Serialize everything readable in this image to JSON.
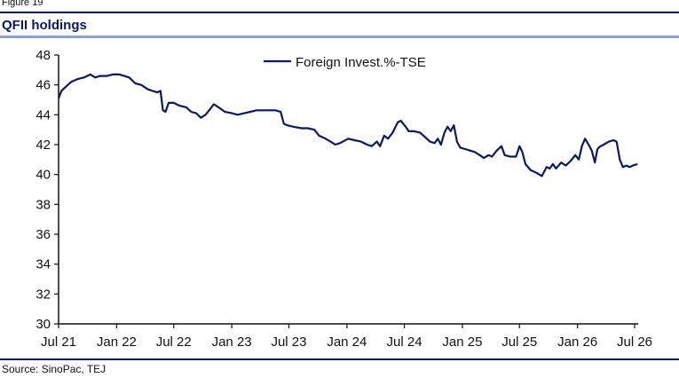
{
  "figure_label": "Figure 19",
  "title": "QFII holdings",
  "source": "Source: SinoPac, TEJ",
  "chart_data": {
    "type": "line",
    "title": "QFII holdings",
    "xlabel": "",
    "ylabel": "",
    "ylim": [
      30,
      48
    ],
    "yticks": [
      "30",
      "32",
      "34",
      "36",
      "38",
      "40",
      "42",
      "44",
      "46",
      "48"
    ],
    "x_range": [
      "2021-07",
      "2026-07"
    ],
    "xticks": [
      {
        "label": "Jul 21",
        "date": "2021-07"
      },
      {
        "label": "Jan 22",
        "date": "2022-01"
      },
      {
        "label": "Jul 22",
        "date": "2022-07"
      },
      {
        "label": "Jan 23",
        "date": "2023-01"
      },
      {
        "label": "Jul 23",
        "date": "2023-07"
      },
      {
        "label": "Jan 24",
        "date": "2024-01"
      },
      {
        "label": "Jul 24",
        "date": "2024-07"
      },
      {
        "label": "Jan 25",
        "date": "2025-01"
      },
      {
        "label": "Jul 25",
        "date": "2025-07"
      },
      {
        "label": "Jan 26",
        "date": "2026-01"
      },
      {
        "label": "Jul 26",
        "date": "2026-07"
      }
    ],
    "grid": false,
    "legend_position": "top-center",
    "series": [
      {
        "name": "Foreign Invest.%-TSE",
        "color": "#0b1a5e",
        "points": [
          [
            "2021-07-01",
            45.1
          ],
          [
            "2021-07-10",
            45.6
          ],
          [
            "2021-07-25",
            45.9
          ],
          [
            "2021-08-10",
            46.2
          ],
          [
            "2021-09-01",
            46.4
          ],
          [
            "2021-09-20",
            46.5
          ],
          [
            "2021-10-10",
            46.7
          ],
          [
            "2021-10-25",
            46.5
          ],
          [
            "2021-11-10",
            46.6
          ],
          [
            "2021-12-01",
            46.6
          ],
          [
            "2021-12-20",
            46.7
          ],
          [
            "2022-01-10",
            46.7
          ],
          [
            "2022-01-25",
            46.6
          ],
          [
            "2022-02-10",
            46.5
          ],
          [
            "2022-03-01",
            46.1
          ],
          [
            "2022-03-20",
            46.0
          ],
          [
            "2022-04-10",
            45.7
          ],
          [
            "2022-04-25",
            45.6
          ],
          [
            "2022-05-10",
            45.5
          ],
          [
            "2022-05-20",
            45.6
          ],
          [
            "2022-05-28",
            44.3
          ],
          [
            "2022-06-05",
            44.2
          ],
          [
            "2022-06-15",
            44.8
          ],
          [
            "2022-07-01",
            44.8
          ],
          [
            "2022-07-20",
            44.6
          ],
          [
            "2022-08-10",
            44.5
          ],
          [
            "2022-08-25",
            44.2
          ],
          [
            "2022-09-10",
            44.1
          ],
          [
            "2022-09-25",
            43.8
          ],
          [
            "2022-10-10",
            44.0
          ],
          [
            "2022-10-25",
            44.4
          ],
          [
            "2022-11-05",
            44.7
          ],
          [
            "2022-11-20",
            44.5
          ],
          [
            "2022-12-10",
            44.2
          ],
          [
            "2023-01-01",
            44.1
          ],
          [
            "2023-01-20",
            44.0
          ],
          [
            "2023-02-10",
            44.1
          ],
          [
            "2023-03-01",
            44.2
          ],
          [
            "2023-03-20",
            44.3
          ],
          [
            "2023-04-10",
            44.3
          ],
          [
            "2023-05-01",
            44.3
          ],
          [
            "2023-05-20",
            44.3
          ],
          [
            "2023-06-05",
            44.2
          ],
          [
            "2023-06-15",
            43.4
          ],
          [
            "2023-06-25",
            43.3
          ],
          [
            "2023-07-15",
            43.2
          ],
          [
            "2023-08-10",
            43.1
          ],
          [
            "2023-08-30",
            43.1
          ],
          [
            "2023-09-20",
            43.0
          ],
          [
            "2023-10-05",
            42.6
          ],
          [
            "2023-10-25",
            42.4
          ],
          [
            "2023-11-10",
            42.2
          ],
          [
            "2023-11-25",
            42.0
          ],
          [
            "2023-12-10",
            42.1
          ],
          [
            "2024-01-05",
            42.4
          ],
          [
            "2024-01-25",
            42.3
          ],
          [
            "2024-02-15",
            42.2
          ],
          [
            "2024-03-05",
            42.0
          ],
          [
            "2024-03-20",
            41.9
          ],
          [
            "2024-04-05",
            42.2
          ],
          [
            "2024-04-15",
            41.9
          ],
          [
            "2024-04-28",
            42.6
          ],
          [
            "2024-05-10",
            42.4
          ],
          [
            "2024-05-25",
            42.8
          ],
          [
            "2024-06-10",
            43.5
          ],
          [
            "2024-06-20",
            43.6
          ],
          [
            "2024-07-05",
            43.2
          ],
          [
            "2024-07-15",
            42.9
          ],
          [
            "2024-08-01",
            42.9
          ],
          [
            "2024-08-20",
            42.8
          ],
          [
            "2024-09-05",
            42.5
          ],
          [
            "2024-09-20",
            42.2
          ],
          [
            "2024-10-05",
            42.1
          ],
          [
            "2024-10-15",
            42.4
          ],
          [
            "2024-10-25",
            42.0
          ],
          [
            "2024-11-05",
            42.8
          ],
          [
            "2024-11-15",
            43.2
          ],
          [
            "2024-11-25",
            42.9
          ],
          [
            "2024-12-05",
            43.3
          ],
          [
            "2024-12-15",
            42.2
          ],
          [
            "2024-12-25",
            41.8
          ],
          [
            "2025-01-10",
            41.7
          ],
          [
            "2025-01-25",
            41.6
          ],
          [
            "2025-02-10",
            41.5
          ],
          [
            "2025-02-25",
            41.3
          ],
          [
            "2025-03-10",
            41.1
          ],
          [
            "2025-03-25",
            41.3
          ],
          [
            "2025-04-05",
            41.2
          ],
          [
            "2025-04-20",
            41.6
          ],
          [
            "2025-05-05",
            41.9
          ],
          [
            "2025-05-15",
            41.3
          ],
          [
            "2025-06-01",
            41.2
          ],
          [
            "2025-06-20",
            41.2
          ],
          [
            "2025-07-01",
            41.9
          ],
          [
            "2025-07-10",
            41.5
          ],
          [
            "2025-07-20",
            40.7
          ],
          [
            "2025-08-05",
            40.3
          ],
          [
            "2025-08-25",
            40.1
          ],
          [
            "2025-09-10",
            39.9
          ],
          [
            "2025-09-25",
            40.5
          ],
          [
            "2025-10-05",
            40.4
          ],
          [
            "2025-10-15",
            40.7
          ],
          [
            "2025-10-25",
            40.4
          ],
          [
            "2025-11-10",
            40.8
          ],
          [
            "2025-11-25",
            40.6
          ],
          [
            "2025-12-10",
            40.9
          ],
          [
            "2025-12-25",
            41.3
          ],
          [
            "2026-01-05",
            41.0
          ],
          [
            "2026-01-15",
            41.9
          ],
          [
            "2026-01-25",
            42.4
          ],
          [
            "2026-02-05",
            42.0
          ],
          [
            "2026-02-15",
            41.6
          ],
          [
            "2026-02-25",
            40.8
          ],
          [
            "2026-03-05",
            41.7
          ],
          [
            "2026-03-15",
            41.9
          ],
          [
            "2026-03-25",
            42.0
          ],
          [
            "2026-04-10",
            42.2
          ],
          [
            "2026-04-25",
            42.3
          ],
          [
            "2026-05-05",
            42.2
          ],
          [
            "2026-05-15",
            41.0
          ],
          [
            "2026-05-25",
            40.5
          ],
          [
            "2026-06-05",
            40.6
          ],
          [
            "2026-06-15",
            40.5
          ],
          [
            "2026-06-25",
            40.6
          ],
          [
            "2026-07-10",
            40.7
          ]
        ]
      }
    ]
  }
}
